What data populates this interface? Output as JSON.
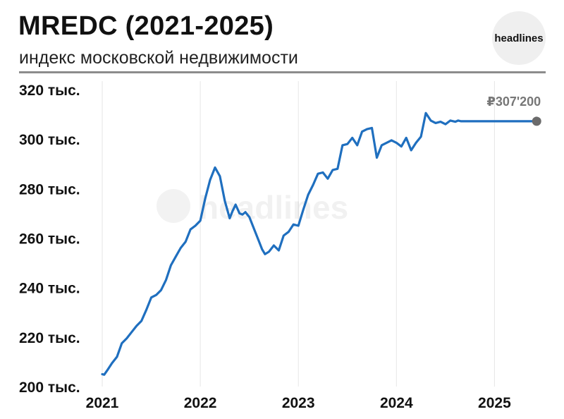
{
  "header": {
    "title": "MREDC (2021-2025)",
    "subtitle": "индекс московской недвижимости",
    "logo_text": "headlines"
  },
  "watermark": "headlines",
  "colors": {
    "line": "#1f6fbf",
    "grid": "#e6e6e6",
    "end_marker": "#6b6b6b",
    "rule": "#8c8c8c"
  },
  "chart_data": {
    "type": "line",
    "title": "MREDC (2021-2025)",
    "subtitle": "индекс московской недвижимости",
    "xlabel": "",
    "ylabel": "",
    "xlim": [
      2021.0,
      2025.45
    ],
    "ylim": [
      200000,
      320000
    ],
    "x_ticks": [
      2021,
      2022,
      2023,
      2024,
      2025
    ],
    "x_tick_labels": [
      "2021",
      "2022",
      "2023",
      "2024",
      "2025"
    ],
    "y_ticks": [
      200000,
      220000,
      240000,
      260000,
      280000,
      300000,
      320000
    ],
    "y_tick_labels": [
      "200 тыс.",
      "220 тыс.",
      "240 тыс.",
      "260 тыс.",
      "280 тыс.",
      "300 тыс.",
      "320 тыс."
    ],
    "grid": "vertical",
    "last_value_label": "₽307'200",
    "series": [
      {
        "x": [
          2021.0,
          2021.02,
          2021.05,
          2021.1,
          2021.15,
          2021.2,
          2021.25,
          2021.3,
          2021.35,
          2021.4,
          2021.45,
          2021.5,
          2021.55,
          2021.6,
          2021.65,
          2021.7,
          2021.75,
          2021.8,
          2021.85,
          2021.9,
          2021.95,
          2022.0,
          2022.05,
          2022.1,
          2022.15,
          2022.2,
          2022.25,
          2022.3,
          2022.33,
          2022.36,
          2022.4,
          2022.43,
          2022.46,
          2022.5,
          2022.55,
          2022.6,
          2022.63,
          2022.66,
          2022.7,
          2022.75,
          2022.8,
          2022.85,
          2022.9,
          2022.95,
          2023.0,
          2023.05,
          2023.1,
          2023.15,
          2023.2,
          2023.25,
          2023.3,
          2023.35,
          2023.4,
          2023.45,
          2023.5,
          2023.55,
          2023.6,
          2023.65,
          2023.7,
          2023.75,
          2023.8,
          2023.85,
          2023.9,
          2023.95,
          2024.0,
          2024.05,
          2024.1,
          2024.15,
          2024.2,
          2024.25,
          2024.3,
          2024.35,
          2024.4,
          2024.45,
          2024.5,
          2024.55,
          2024.6,
          2024.63,
          2024.66,
          2024.7,
          2024.75,
          2024.8,
          2024.85,
          2024.9,
          2024.95,
          2025.0,
          2025.05,
          2025.1,
          2025.15,
          2025.2,
          2025.25,
          2025.3,
          2025.35,
          2025.4,
          2025.43
        ],
        "y": [
          205000,
          204800,
          206500,
          209500,
          212000,
          217500,
          219500,
          222000,
          224500,
          226500,
          231000,
          236000,
          237000,
          239000,
          243000,
          249000,
          252500,
          256000,
          258500,
          263500,
          265000,
          267000,
          276000,
          283500,
          288500,
          285000,
          275000,
          268000,
          271000,
          273500,
          270000,
          269500,
          270500,
          268500,
          263500,
          258500,
          255500,
          253500,
          254500,
          257000,
          255000,
          261000,
          262500,
          265500,
          265000,
          271500,
          277500,
          281500,
          286000,
          286500,
          284000,
          287500,
          288000,
          297500,
          298000,
          300500,
          297500,
          303000,
          304000,
          304500,
          292500,
          297500,
          298500,
          299500,
          298500,
          297000,
          300500,
          295500,
          298500,
          301000,
          310500,
          307500,
          306500,
          307000,
          306000,
          307500,
          307000,
          307500,
          307200,
          307200,
          307200,
          307200,
          307200,
          307200,
          307200,
          307200,
          307200,
          307200,
          307200,
          307200,
          307200,
          307200,
          307200,
          307200,
          307200
        ]
      }
    ]
  }
}
